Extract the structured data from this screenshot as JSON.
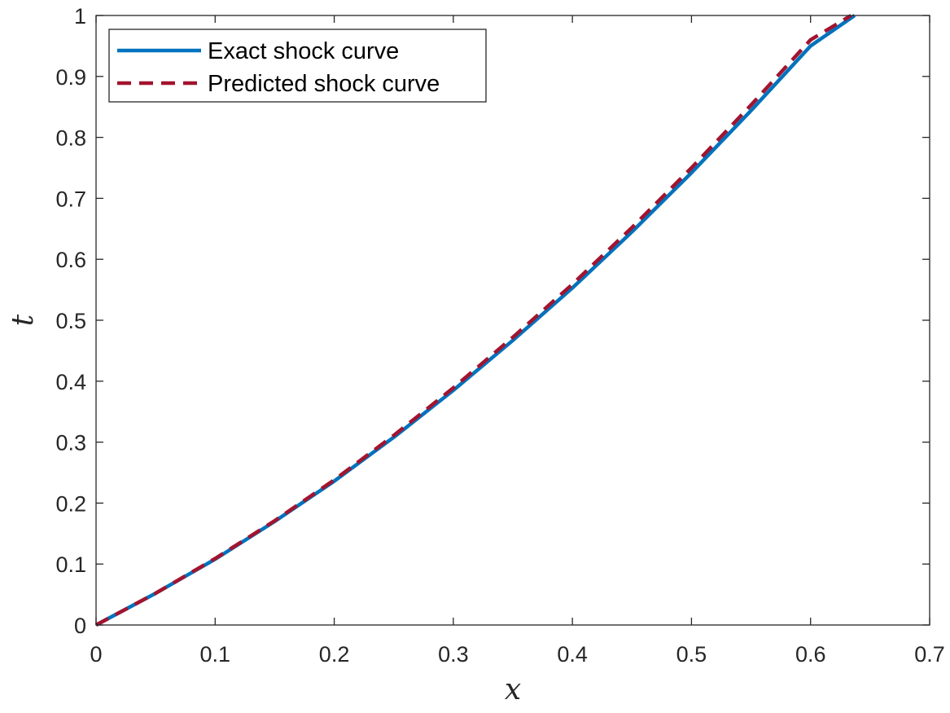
{
  "chart_data": {
    "type": "line",
    "title": "",
    "xlabel": "x",
    "ylabel": "t",
    "xlim": [
      0,
      0.7
    ],
    "ylim": [
      0,
      1
    ],
    "xticks": [
      0,
      0.1,
      0.2,
      0.3,
      0.4,
      0.5,
      0.6,
      0.7
    ],
    "xtick_labels": [
      "0",
      "0.1",
      "0.2",
      "0.3",
      "0.4",
      "0.5",
      "0.6",
      "0.7"
    ],
    "yticks": [
      0,
      0.1,
      0.2,
      0.3,
      0.4,
      0.5,
      0.6,
      0.7,
      0.8,
      0.9,
      1
    ],
    "ytick_labels": [
      "0",
      "0.1",
      "0.2",
      "0.3",
      "0.4",
      "0.5",
      "0.6",
      "0.7",
      "0.8",
      "0.9",
      "1"
    ],
    "grid": false,
    "legend_position": "top-left",
    "series": [
      {
        "name": "Exact shock curve",
        "style": "solid",
        "color": "#0072BD",
        "x": [
          0,
          0.05,
          0.1,
          0.15,
          0.2,
          0.25,
          0.3,
          0.35,
          0.4,
          0.45,
          0.5,
          0.55,
          0.6,
          0.637
        ],
        "y": [
          0,
          0.052,
          0.108,
          0.17,
          0.236,
          0.308,
          0.385,
          0.467,
          0.553,
          0.645,
          0.742,
          0.844,
          0.95,
          1.0
        ]
      },
      {
        "name": "Predicted shock curve",
        "style": "dashed",
        "color": "#A2142F",
        "x": [
          0,
          0.05,
          0.1,
          0.15,
          0.2,
          0.25,
          0.3,
          0.35,
          0.4,
          0.45,
          0.5,
          0.55,
          0.6,
          0.634
        ],
        "y": [
          0,
          0.052,
          0.109,
          0.171,
          0.238,
          0.311,
          0.389,
          0.472,
          0.559,
          0.652,
          0.75,
          0.853,
          0.96,
          1.0
        ]
      }
    ]
  }
}
